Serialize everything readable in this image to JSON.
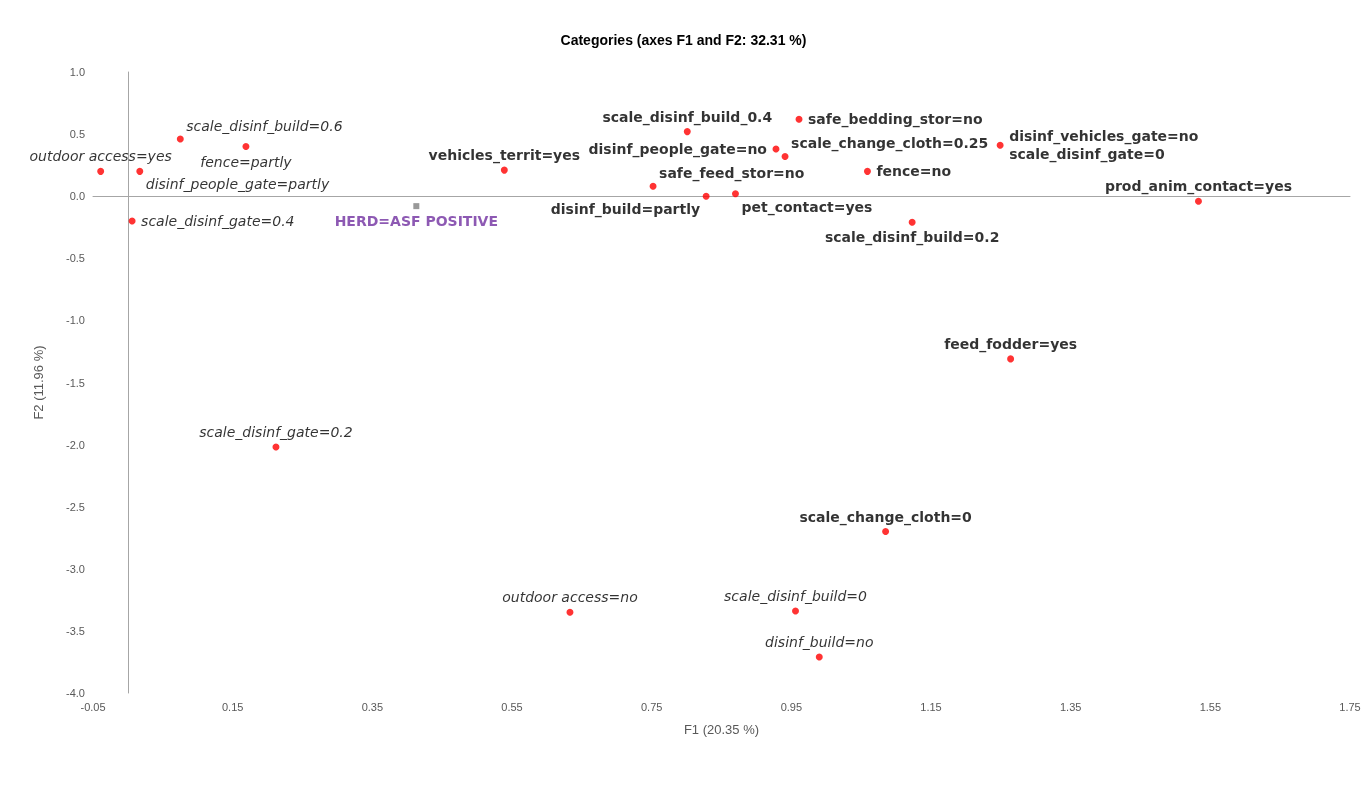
{
  "chart_data": {
    "type": "scatter",
    "title": "Categories (axes F1 and F2: 32.31 %)",
    "xlabel": "F1 (20.35 %)",
    "ylabel": "F2 (11.96 %)",
    "xlim": [
      -0.05,
      1.75
    ],
    "xticks": [
      -0.05,
      0.15,
      0.35,
      0.55,
      0.75,
      0.95,
      1.15,
      1.35,
      1.55,
      1.75
    ],
    "ylim": [
      -4,
      1
    ],
    "yticks": [
      {
        "value": -4,
        "label": "-4.0"
      },
      {
        "value": -3.5,
        "label": "-3.5"
      },
      {
        "value": -3,
        "label": "-3.0"
      },
      {
        "value": -2.5,
        "label": "-2.5"
      },
      {
        "value": -2,
        "label": "-2.0"
      },
      {
        "value": -1.5,
        "label": "-1.5"
      },
      {
        "value": -1,
        "label": "-1.0"
      },
      {
        "value": -0.5,
        "label": "-0.5"
      },
      {
        "value": 0,
        "label": "0.0"
      },
      {
        "value": 0.5,
        "label": "0.5"
      },
      {
        "value": 1,
        "label": "1.0"
      }
    ],
    "series": [
      {
        "color": "#ff0000",
        "marker": "circle",
        "x": [
          -0.039,
          0.017,
          0.075,
          0.169,
          0.006,
          0.212,
          0.633,
          0.956,
          0.99
        ],
        "values": [
          0.2,
          0.2,
          0.46,
          0.4,
          -0.2,
          -2.02,
          -3.35,
          -3.34,
          -3.71
        ]
      },
      {
        "color": "#ff0000",
        "marker": "circle",
        "x": [
          0.539,
          0.752,
          0.801,
          0.87,
          0.828,
          0.961,
          0.928,
          0.941,
          1.059,
          1.249,
          1.123,
          1.533,
          1.264,
          1.085
        ],
        "values": [
          0.21,
          0.08,
          0.52,
          0.02,
          0,
          0.62,
          0.38,
          0.32,
          0.2,
          0.41,
          -0.21,
          -0.04,
          -1.31,
          -2.7
        ]
      },
      {
        "color": "#808080",
        "marker": "square",
        "x": [
          0.413
        ],
        "values": [
          -0.08
        ]
      }
    ],
    "annotations": [
      {
        "text": "outdoor access=yes",
        "x": -0.039,
        "y": 0.2
      },
      {
        "text": "disinf_people_gate=partly",
        "x": 0.017,
        "y": 0.2
      },
      {
        "text": "scale_disinf_build=0.6",
        "x": 0.075,
        "y": 0.46
      },
      {
        "text": "fence=partly",
        "x": 0.169,
        "y": 0.4
      },
      {
        "text": "scale_disinf_gate=0.4",
        "x": 0.006,
        "y": -0.2
      },
      {
        "text": "scale_disinf_gate=0.2",
        "x": 0.212,
        "y": -2.02
      },
      {
        "text": "outdoor access=no",
        "x": 0.633,
        "y": -3.35
      },
      {
        "text": "scale_disinf_build=0",
        "x": 0.956,
        "y": -3.34
      },
      {
        "text": "disinf_build=no",
        "x": 0.99,
        "y": -3.71
      },
      {
        "text": "vehicles_territ=yes",
        "x": 0.539,
        "y": 0.21
      },
      {
        "text": "safe_feed_stor=no",
        "x": 0.752,
        "y": 0.08
      },
      {
        "text": "scale_disinf_build_0.4",
        "x": 0.801,
        "y": 0.52
      },
      {
        "text": "pet_contact=yes",
        "x": 0.87,
        "y": 0.02
      },
      {
        "text": "disinf_build=partly",
        "x": 0.828,
        "y": 0
      },
      {
        "text": "safe_bedding_stor=no",
        "x": 0.961,
        "y": 0.62
      },
      {
        "text": "disinf_people_gate=no",
        "x": 0.928,
        "y": 0.38
      },
      {
        "text": "scale_change_cloth=0.25",
        "x": 0.941,
        "y": 0.32
      },
      {
        "text": "fence=no",
        "x": 1.059,
        "y": 0.2
      },
      {
        "text": "disinf_vehicles_gate=no",
        "x": 1.249,
        "y": 0.41
      },
      {
        "text": "scale_disinf_gate=0",
        "x": 1.249,
        "y": 0.41
      },
      {
        "text": "scale_disinf_build=0.2",
        "x": 1.123,
        "y": -0.21
      },
      {
        "text": "prod_anim_contact=yes",
        "x": 1.533,
        "y": -0.04
      },
      {
        "text": "feed_fodder=yes",
        "x": 1.264,
        "y": -1.31
      },
      {
        "text": "scale_change_cloth=0",
        "x": 1.085,
        "y": -2.7
      },
      {
        "text": "HERD=ASF POSITIVE",
        "x": 0.413,
        "y": -0.08
      }
    ]
  }
}
